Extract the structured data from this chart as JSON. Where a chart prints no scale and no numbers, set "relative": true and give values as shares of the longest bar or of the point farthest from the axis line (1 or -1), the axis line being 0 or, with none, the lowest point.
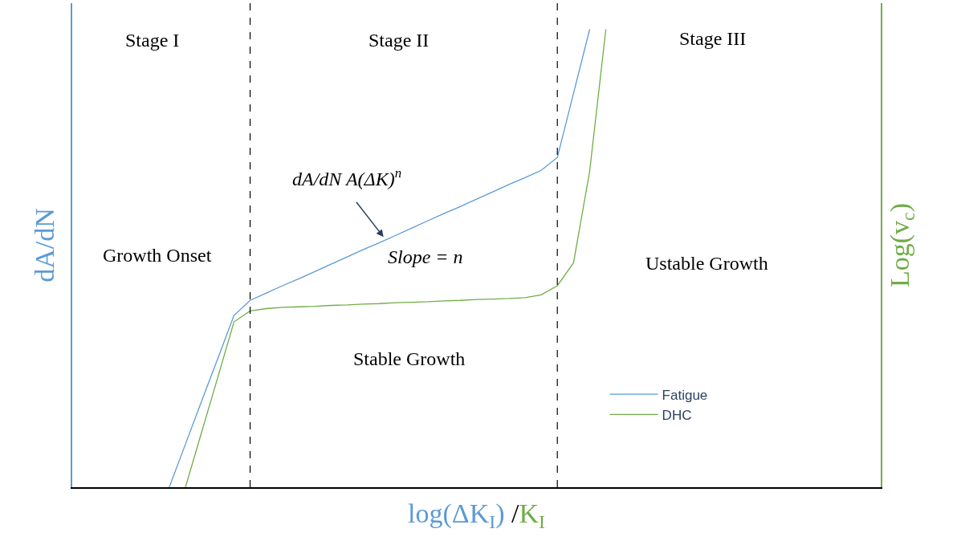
{
  "chart_data": {
    "type": "line",
    "relative": true,
    "tick_labels": false,
    "legend": "bottom right",
    "marker": "none",
    "line_style": "solid",
    "xlabel": "log(ΔK$_{I}$) /K$_{I}$",
    "ylabel": "dA/dN",
    "y2label": "Log(v$_{c}$)",
    "categories": [
      null,
      null,
      null,
      null,
      null,
      null,
      null,
      null,
      null,
      null,
      null,
      null,
      null,
      null,
      null,
      null,
      null,
      null,
      null,
      null,
      null,
      null,
      null,
      null,
      null,
      null,
      null,
      null,
      null,
      null,
      null,
      null,
      null,
      null,
      null,
      null,
      null,
      null,
      null,
      null,
      null,
      null,
      null,
      null,
      null,
      null,
      null,
      null,
      null,
      null,
      null
    ],
    "series": [
      {
        "name": "Fatigue",
        "color": "#5b9bd5",
        "values": [
          null,
          null,
          null,
          null,
          null,
          null,
          0,
          0.094,
          0.188,
          0.281,
          0.375,
          0.408,
          0.424,
          0.44,
          0.455,
          0.471,
          0.487,
          0.503,
          0.519,
          0.534,
          0.55,
          0.566,
          0.582,
          0.598,
          0.613,
          0.629,
          0.645,
          0.661,
          0.676,
          0.692,
          0.72,
          0.86,
          1.0,
          null,
          null,
          null,
          null,
          null,
          null,
          null,
          null,
          null,
          null,
          null,
          null,
          null,
          null,
          null,
          null,
          null,
          null
        ]
      },
      {
        "name": "DHC",
        "color": "#70ad47",
        "values": [
          null,
          null,
          null,
          null,
          null,
          null,
          null,
          0,
          0.12,
          0.24,
          0.361,
          0.385,
          0.39,
          0.393,
          0.394,
          0.395,
          0.397,
          0.398,
          0.4,
          0.401,
          0.403,
          0.404,
          0.405,
          0.407,
          0.408,
          0.41,
          0.411,
          0.412,
          0.414,
          0.42,
          0.44,
          0.49,
          0.69,
          1.0,
          null,
          null,
          null,
          null,
          null,
          null,
          null,
          null,
          null,
          null,
          null,
          null,
          null,
          null,
          null,
          null,
          null
        ]
      }
    ],
    "annotations": [
      "Stage I",
      "Stage II",
      "Stage III",
      "Growth Onset",
      "Stable Growth",
      "Ustable Growth",
      "dA/dN A(ΔK)$^{n}$",
      "Slope = n"
    ]
  }
}
